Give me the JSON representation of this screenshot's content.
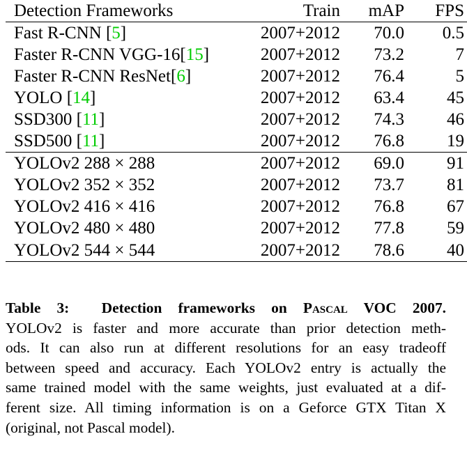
{
  "table": {
    "headers": {
      "name": "Detection Frameworks",
      "train": "Train",
      "map": "mAP",
      "fps": "FPS"
    },
    "group1": [
      {
        "name": "Fast R-CNN ",
        "cite": "5",
        "train": "2007+2012",
        "map": "70.0",
        "fps": "0.5"
      },
      {
        "name": "Faster R-CNN VGG-16",
        "cite": "15",
        "train": "2007+2012",
        "map": "73.2",
        "fps": "7"
      },
      {
        "name": "Faster R-CNN ResNet",
        "cite": "6",
        "train": "2007+2012",
        "map": "76.4",
        "fps": "5"
      },
      {
        "name": "YOLO ",
        "cite": "14",
        "train": "2007+2012",
        "map": "63.4",
        "fps": "45"
      },
      {
        "name": "SSD300 ",
        "cite": "11",
        "train": "2007+2012",
        "map": "74.3",
        "fps": "46"
      },
      {
        "name": "SSD500 ",
        "cite": "11",
        "train": "2007+2012",
        "map": "76.8",
        "fps": "19"
      }
    ],
    "group2": [
      {
        "name": "YOLOv2 288 × 288",
        "train": "2007+2012",
        "map": "69.0",
        "fps": "91"
      },
      {
        "name": "YOLOv2 352 × 352",
        "train": "2007+2012",
        "map": "73.7",
        "fps": "81"
      },
      {
        "name": "YOLOv2 416 × 416",
        "train": "2007+2012",
        "map": "76.8",
        "fps": "67"
      },
      {
        "name": "YOLOv2 480 × 480",
        "train": "2007+2012",
        "map": "77.8",
        "fps": "59"
      },
      {
        "name": "YOLOv2 544 × 544",
        "train": "2007+2012",
        "map": "78.6",
        "fps": "40"
      }
    ]
  },
  "caption": {
    "label": "Table 3:",
    "title_prefix": "Detection frameworks on ",
    "title_smallcaps": "Pascal",
    "title_suffix": " VOC 2007.",
    "lines": [
      "YOLOv2 is faster and more accurate than prior detection meth-",
      "ods.  It can also run at different resolutions for an easy tradeoff",
      "between speed and accuracy. Each YOLOv2 entry is actually the",
      "same trained model with the same weights, just evaluated at a dif-",
      "ferent size.  All timing information is on a Geforce GTX Titan X",
      "(original, not Pascal model)."
    ]
  },
  "colors": {
    "citation": "#00cc00",
    "text": "#000000"
  }
}
